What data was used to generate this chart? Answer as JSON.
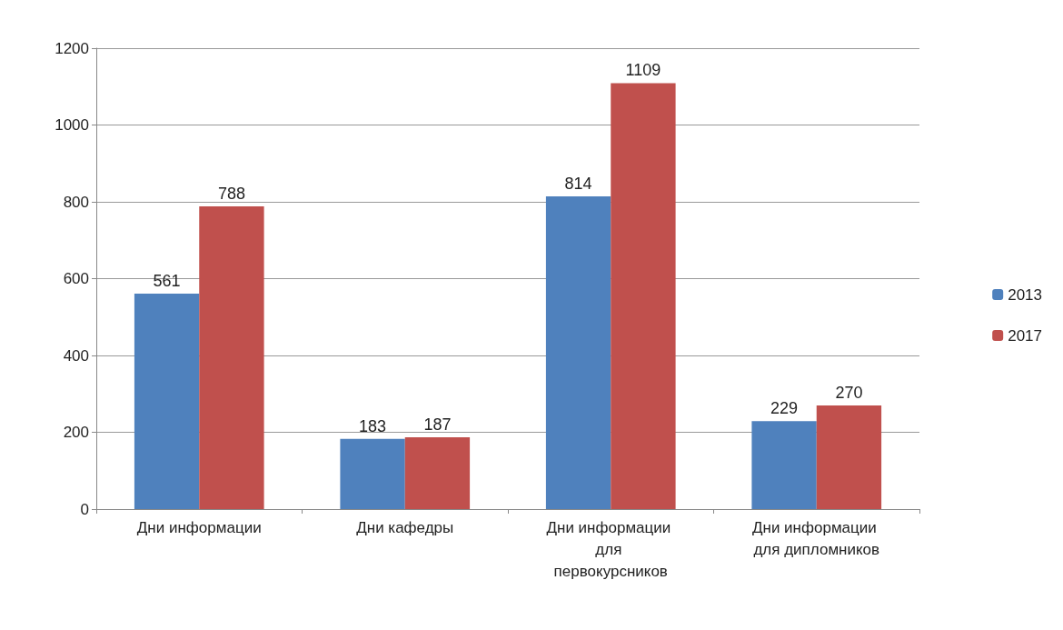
{
  "chart_data": {
    "type": "bar",
    "categories": [
      "Дни информации",
      "Дни кафедры",
      "Дни информации для первокурсников",
      "Дни информации для дипломников"
    ],
    "series": [
      {
        "name": "2013",
        "color": "#4f81bd",
        "values": [
          561,
          183,
          814,
          229
        ]
      },
      {
        "name": "2017",
        "color": "#c0504d",
        "values": [
          788,
          187,
          1109,
          270
        ]
      }
    ],
    "ylim": [
      0,
      1200
    ],
    "yticks": [
      0,
      200,
      400,
      600,
      800,
      1000,
      1200
    ],
    "grid": "y",
    "legend": "right",
    "data_labels": true
  }
}
